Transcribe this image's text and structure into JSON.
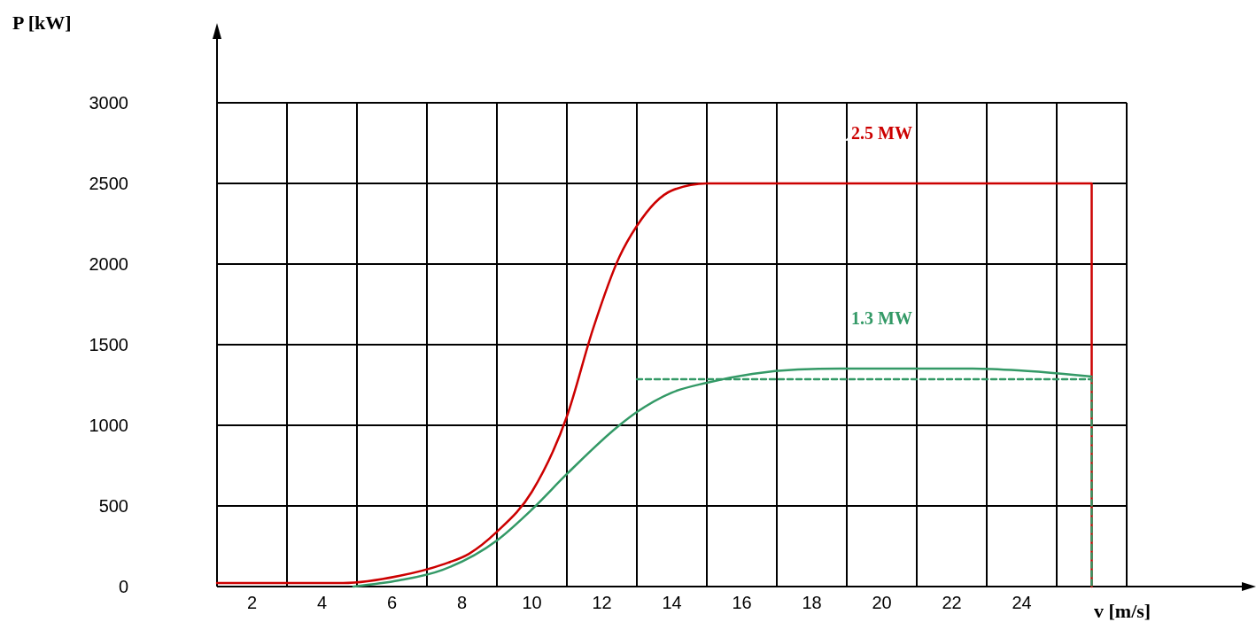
{
  "chart_data": {
    "type": "line",
    "xlabel": "v [m/s]",
    "ylabel": "P [kW]",
    "xlim": [
      1,
      30.4
    ],
    "ylim": [
      0,
      3000
    ],
    "xticks": [
      {
        "value": 1,
        "label": null
      },
      2,
      {
        "value": 3,
        "label": null
      },
      4,
      {
        "value": 5,
        "label": null
      },
      6,
      {
        "value": 7,
        "label": null
      },
      8,
      {
        "value": 9,
        "label": null
      },
      10,
      {
        "value": 11,
        "label": null
      },
      12,
      {
        "value": 13,
        "label": null
      },
      14,
      {
        "value": 15,
        "label": null
      },
      16,
      {
        "value": 17,
        "label": null
      },
      18,
      {
        "value": 19,
        "label": null
      },
      20,
      {
        "value": 21,
        "label": null
      },
      22,
      {
        "value": 23,
        "label": null
      },
      24,
      {
        "value": 25,
        "label": null
      },
      {
        "value": 27,
        "label": null
      }
    ],
    "yticks": [
      0,
      500,
      1000,
      1500,
      2000,
      2500,
      3000
    ],
    "grid": true,
    "series": [
      {
        "name": "2.5 MW",
        "color": "#cc0000",
        "line_style": "solid",
        "x": [
          1,
          4.6,
          6.2,
          7.45,
          8.2,
          9,
          10,
          11,
          11.75,
          12.5,
          13,
          14,
          15,
          26,
          26
        ],
        "values": [
          22,
          22,
          66,
          137,
          203,
          340,
          588,
          1055,
          1600,
          2044,
          2236,
          2456,
          2500,
          2500,
          0
        ]
      },
      {
        "name": "1.3 MW",
        "color": "#339966",
        "line_style": "solid",
        "x": [
          4.9,
          6.2,
          7.45,
          9,
          10,
          11,
          12.5,
          13,
          14,
          15,
          16.3,
          17.6,
          18.8,
          22.6,
          23.9,
          25.2,
          26
        ],
        "values": [
          0,
          38,
          104,
          286,
          478,
          698,
          1000,
          1082,
          1203,
          1264,
          1319,
          1346,
          1352,
          1352,
          1341,
          1319,
          1302
        ]
      },
      {
        "color": "#339966",
        "line_style": "dashed",
        "x": [
          13,
          26,
          26
        ],
        "values": [
          1286,
          1286,
          0
        ]
      }
    ]
  }
}
